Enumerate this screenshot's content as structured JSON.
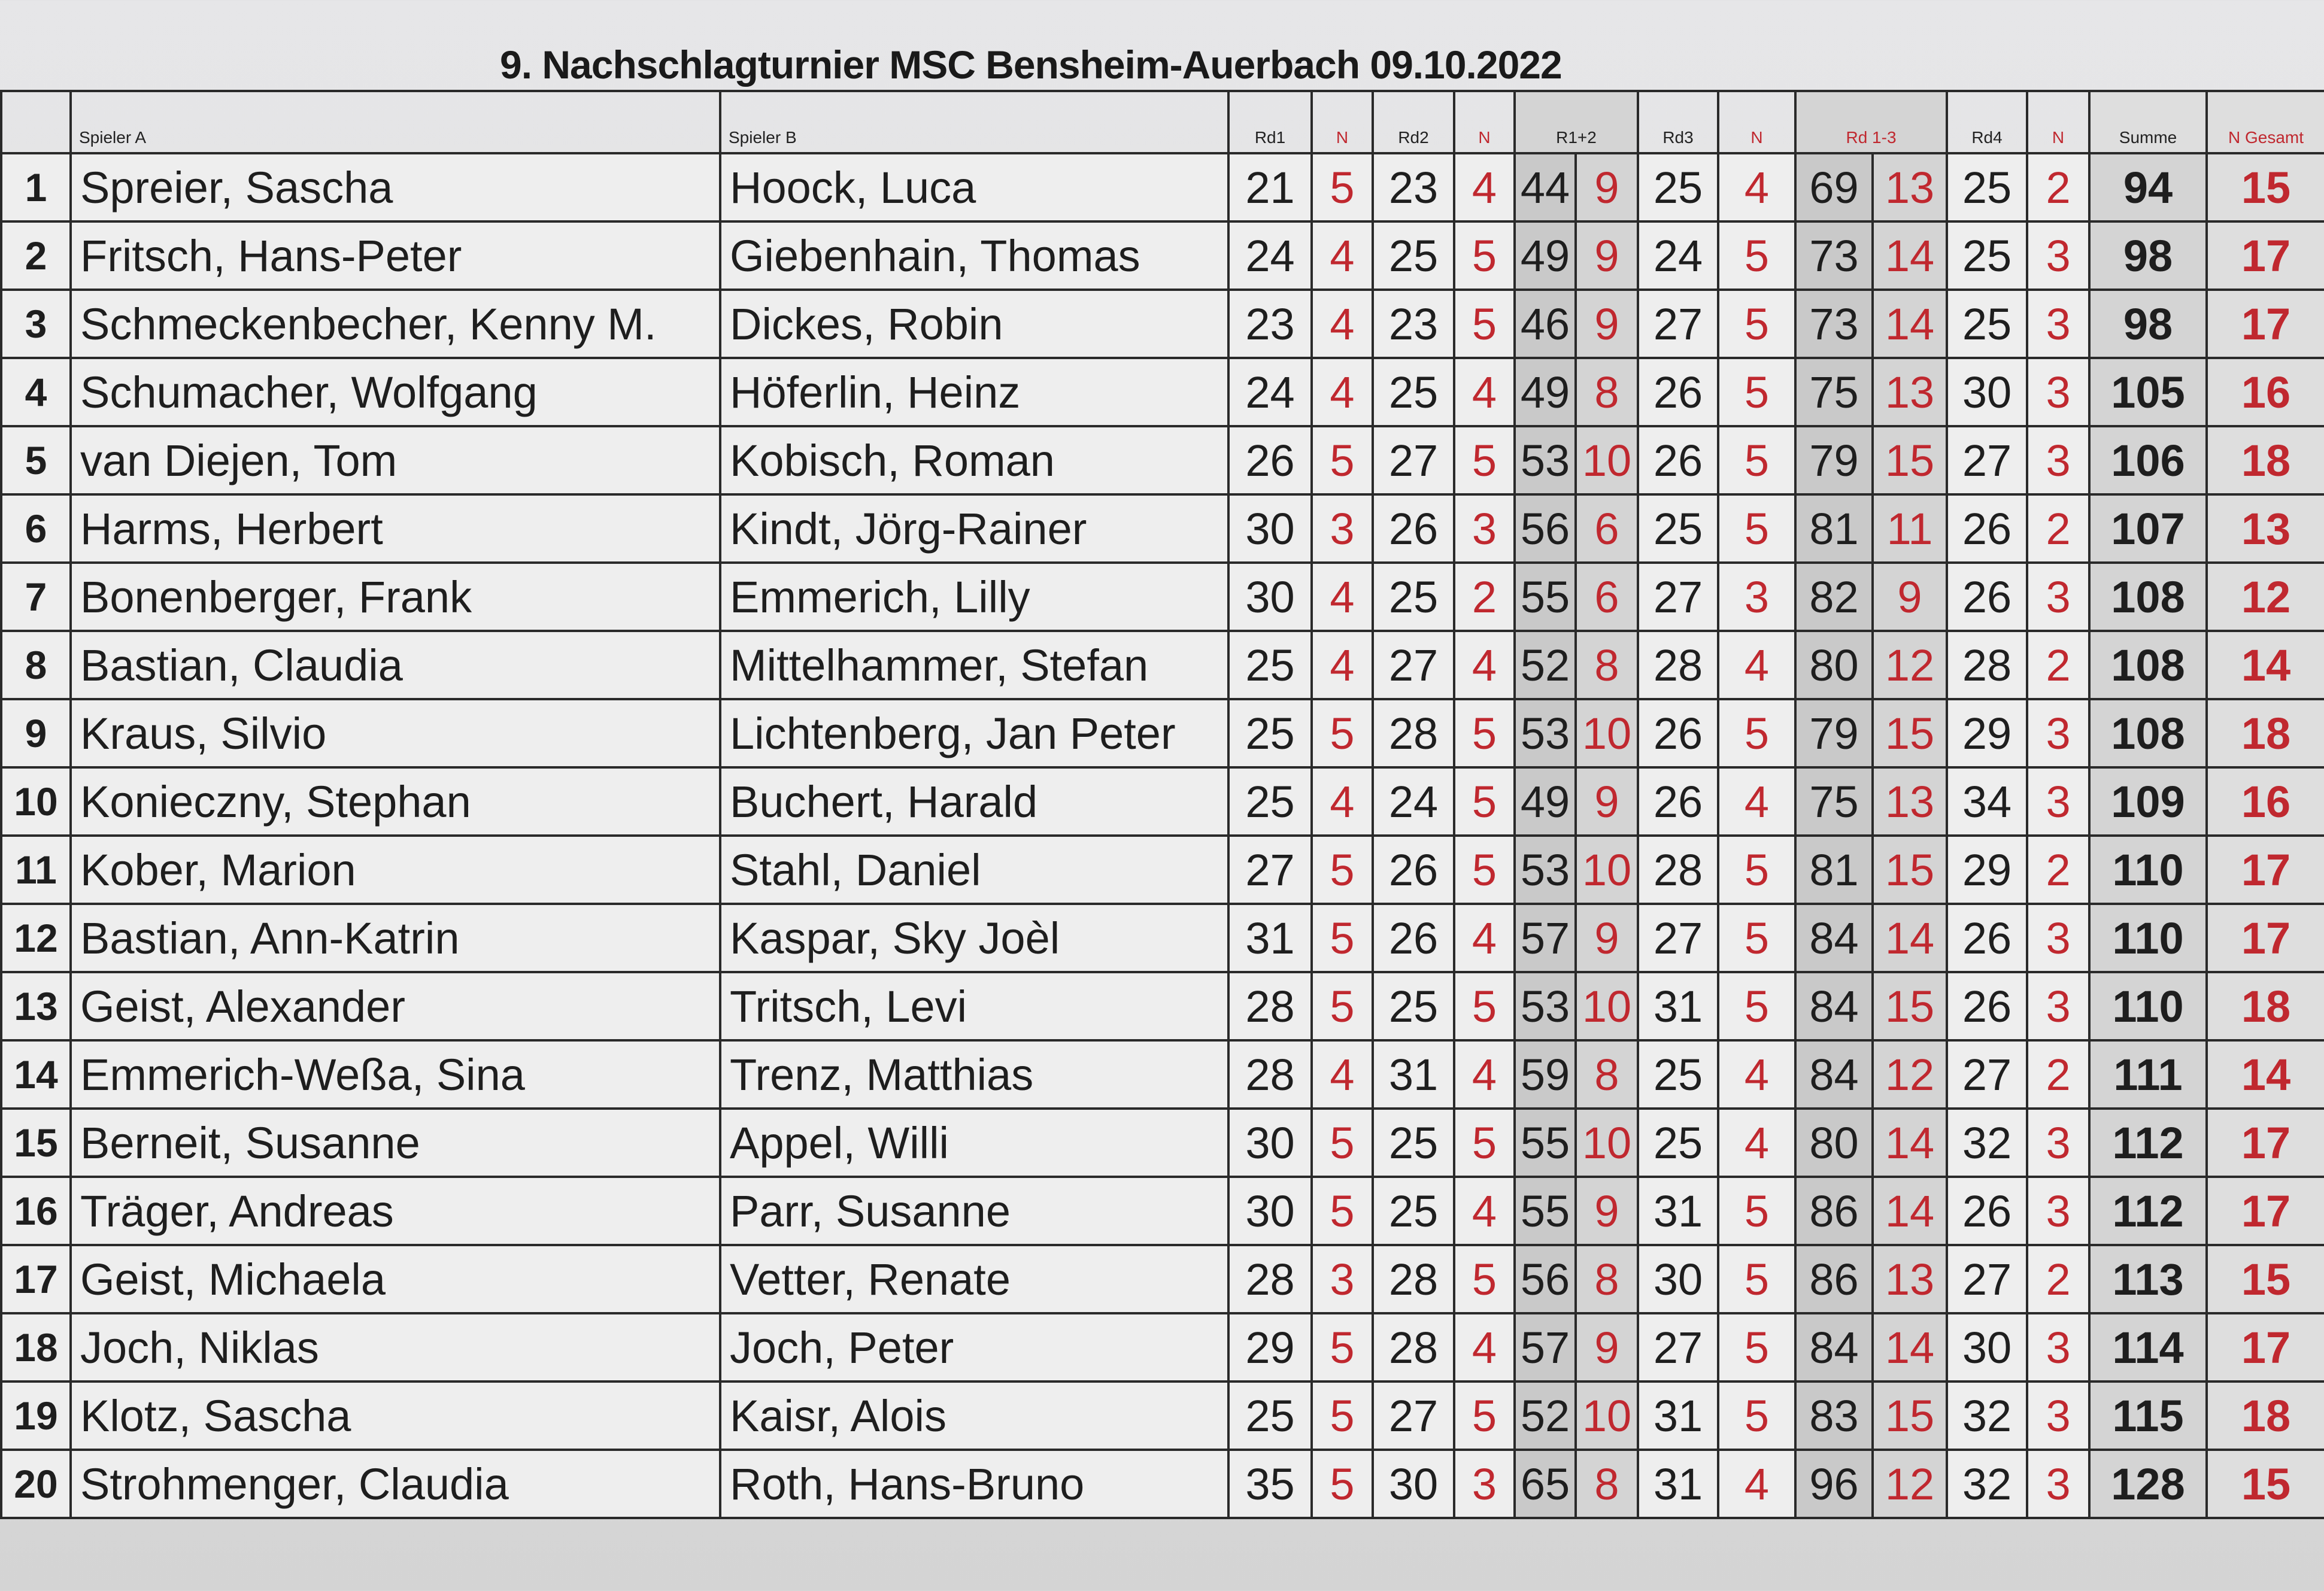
{
  "title": "9. Nachschlagturnier MSC Bensheim-Auerbach 09.10.2022",
  "headers": {
    "spieler_a": "Spieler A",
    "spieler_b": "Spieler B",
    "rd1": "Rd1",
    "n1": "N",
    "rd2": "Rd2",
    "n2": "N",
    "r12": "R1+2",
    "rd3": "Rd3",
    "n3": "N",
    "rd13": "Rd 1-3",
    "rd4": "Rd4",
    "n4": "N",
    "summe": "Summe",
    "n_gesamt": "N Gesamt"
  },
  "colors": {
    "red": "#c0282f",
    "black": "#1e1e1e"
  },
  "rows": [
    {
      "nr": "1",
      "a": "Spreier, Sascha",
      "b": "Hoock, Luca",
      "rd1": "21",
      "n1": "5",
      "rd2": "23",
      "n2": "4",
      "r12": "44",
      "n12": "9",
      "rd3": "25",
      "n3": "4",
      "rd13": "69",
      "n13": "13",
      "rd4": "25",
      "n4": "2",
      "summe": "94",
      "ng": "15"
    },
    {
      "nr": "2",
      "a": "Fritsch, Hans-Peter",
      "b": "Giebenhain, Thomas",
      "rd1": "24",
      "n1": "4",
      "rd2": "25",
      "n2": "5",
      "r12": "49",
      "n12": "9",
      "rd3": "24",
      "n3": "5",
      "rd13": "73",
      "n13": "14",
      "rd4": "25",
      "n4": "3",
      "summe": "98",
      "ng": "17"
    },
    {
      "nr": "3",
      "a": "Schmeckenbecher, Kenny M.",
      "b": "Dickes, Robin",
      "rd1": "23",
      "n1": "4",
      "rd2": "23",
      "n2": "5",
      "r12": "46",
      "n12": "9",
      "rd3": "27",
      "n3": "5",
      "rd13": "73",
      "n13": "14",
      "rd4": "25",
      "n4": "3",
      "summe": "98",
      "ng": "17"
    },
    {
      "nr": "4",
      "a": "Schumacher, Wolfgang",
      "b": "Höferlin, Heinz",
      "rd1": "24",
      "n1": "4",
      "rd2": "25",
      "n2": "4",
      "r12": "49",
      "n12": "8",
      "rd3": "26",
      "n3": "5",
      "rd13": "75",
      "n13": "13",
      "rd4": "30",
      "n4": "3",
      "summe": "105",
      "ng": "16"
    },
    {
      "nr": "5",
      "a": "van Diejen, Tom",
      "b": "Kobisch, Roman",
      "rd1": "26",
      "n1": "5",
      "rd2": "27",
      "n2": "5",
      "r12": "53",
      "n12": "10",
      "rd3": "26",
      "n3": "5",
      "rd13": "79",
      "n13": "15",
      "rd4": "27",
      "n4": "3",
      "summe": "106",
      "ng": "18"
    },
    {
      "nr": "6",
      "a": "Harms, Herbert",
      "b": "Kindt, Jörg-Rainer",
      "rd1": "30",
      "n1": "3",
      "rd2": "26",
      "n2": "3",
      "r12": "56",
      "n12": "6",
      "rd3": "25",
      "n3": "5",
      "rd13": "81",
      "n13": "11",
      "rd4": "26",
      "n4": "2",
      "summe": "107",
      "ng": "13"
    },
    {
      "nr": "7",
      "a": "Bonenberger, Frank",
      "b": "Emmerich, Lilly",
      "rd1": "30",
      "n1": "4",
      "rd2": "25",
      "n2": "2",
      "r12": "55",
      "n12": "6",
      "rd3": "27",
      "n3": "3",
      "rd13": "82",
      "n13": "9",
      "rd4": "26",
      "n4": "3",
      "summe": "108",
      "ng": "12"
    },
    {
      "nr": "8",
      "a": "Bastian, Claudia",
      "b": "Mittelhammer, Stefan",
      "rd1": "25",
      "n1": "4",
      "rd2": "27",
      "n2": "4",
      "r12": "52",
      "n12": "8",
      "rd3": "28",
      "n3": "4",
      "rd13": "80",
      "n13": "12",
      "rd4": "28",
      "n4": "2",
      "summe": "108",
      "ng": "14"
    },
    {
      "nr": "9",
      "a": "Kraus, Silvio",
      "b": "Lichtenberg, Jan Peter",
      "rd1": "25",
      "n1": "5",
      "rd2": "28",
      "n2": "5",
      "r12": "53",
      "n12": "10",
      "rd3": "26",
      "n3": "5",
      "rd13": "79",
      "n13": "15",
      "rd4": "29",
      "n4": "3",
      "summe": "108",
      "ng": "18"
    },
    {
      "nr": "10",
      "a": "Konieczny, Stephan",
      "b": "Buchert, Harald",
      "rd1": "25",
      "n1": "4",
      "rd2": "24",
      "n2": "5",
      "r12": "49",
      "n12": "9",
      "rd3": "26",
      "n3": "4",
      "rd13": "75",
      "n13": "13",
      "rd4": "34",
      "n4": "3",
      "summe": "109",
      "ng": "16"
    },
    {
      "nr": "11",
      "a": "Kober, Marion",
      "b": "Stahl, Daniel",
      "rd1": "27",
      "n1": "5",
      "rd2": "26",
      "n2": "5",
      "r12": "53",
      "n12": "10",
      "rd3": "28",
      "n3": "5",
      "rd13": "81",
      "n13": "15",
      "rd4": "29",
      "n4": "2",
      "summe": "110",
      "ng": "17"
    },
    {
      "nr": "12",
      "a": "Bastian, Ann-Katrin",
      "b": "Kaspar, Sky Joèl",
      "rd1": "31",
      "n1": "5",
      "rd2": "26",
      "n2": "4",
      "r12": "57",
      "n12": "9",
      "rd3": "27",
      "n3": "5",
      "rd13": "84",
      "n13": "14",
      "rd4": "26",
      "n4": "3",
      "summe": "110",
      "ng": "17"
    },
    {
      "nr": "13",
      "a": "Geist, Alexander",
      "b": "Tritsch, Levi",
      "rd1": "28",
      "n1": "5",
      "rd2": "25",
      "n2": "5",
      "r12": "53",
      "n12": "10",
      "rd3": "31",
      "n3": "5",
      "rd13": "84",
      "n13": "15",
      "rd4": "26",
      "n4": "3",
      "summe": "110",
      "ng": "18"
    },
    {
      "nr": "14",
      "a": "Emmerich-Weßa, Sina",
      "b": "Trenz, Matthias",
      "rd1": "28",
      "n1": "4",
      "rd2": "31",
      "n2": "4",
      "r12": "59",
      "n12": "8",
      "rd3": "25",
      "n3": "4",
      "rd13": "84",
      "n13": "12",
      "rd4": "27",
      "n4": "2",
      "summe": "111",
      "ng": "14"
    },
    {
      "nr": "15",
      "a": "Berneit, Susanne",
      "b": "Appel, Willi",
      "rd1": "30",
      "n1": "5",
      "rd2": "25",
      "n2": "5",
      "r12": "55",
      "n12": "10",
      "rd3": "25",
      "n3": "4",
      "rd13": "80",
      "n13": "14",
      "rd4": "32",
      "n4": "3",
      "summe": "112",
      "ng": "17"
    },
    {
      "nr": "16",
      "a": "Träger, Andreas",
      "b": "Parr, Susanne",
      "rd1": "30",
      "n1": "5",
      "rd2": "25",
      "n2": "4",
      "r12": "55",
      "n12": "9",
      "rd3": "31",
      "n3": "5",
      "rd13": "86",
      "n13": "14",
      "rd4": "26",
      "n4": "3",
      "summe": "112",
      "ng": "17"
    },
    {
      "nr": "17",
      "a": "Geist, Michaela",
      "b": "Vetter, Renate",
      "rd1": "28",
      "n1": "3",
      "rd2": "28",
      "n2": "5",
      "r12": "56",
      "n12": "8",
      "rd3": "30",
      "n3": "5",
      "rd13": "86",
      "n13": "13",
      "rd4": "27",
      "n4": "2",
      "summe": "113",
      "ng": "15"
    },
    {
      "nr": "18",
      "a": "Joch, Niklas",
      "b": "Joch, Peter",
      "rd1": "29",
      "n1": "5",
      "rd2": "28",
      "n2": "4",
      "r12": "57",
      "n12": "9",
      "rd3": "27",
      "n3": "5",
      "rd13": "84",
      "n13": "14",
      "rd4": "30",
      "n4": "3",
      "summe": "114",
      "ng": "17"
    },
    {
      "nr": "19",
      "a": "Klotz, Sascha",
      "b": "Kaisr, Alois",
      "rd1": "25",
      "n1": "5",
      "rd2": "27",
      "n2": "5",
      "r12": "52",
      "n12": "10",
      "rd3": "31",
      "n3": "5",
      "rd13": "83",
      "n13": "15",
      "rd4": "32",
      "n4": "3",
      "summe": "115",
      "ng": "18"
    },
    {
      "nr": "20",
      "a": "Strohmenger, Claudia",
      "b": "Roth, Hans-Bruno",
      "rd1": "35",
      "n1": "5",
      "rd2": "30",
      "n2": "3",
      "r12": "65",
      "n12": "8",
      "rd3": "31",
      "n3": "4",
      "rd13": "96",
      "n13": "12",
      "rd4": "32",
      "n4": "3",
      "summe": "128",
      "ng": "15"
    }
  ]
}
